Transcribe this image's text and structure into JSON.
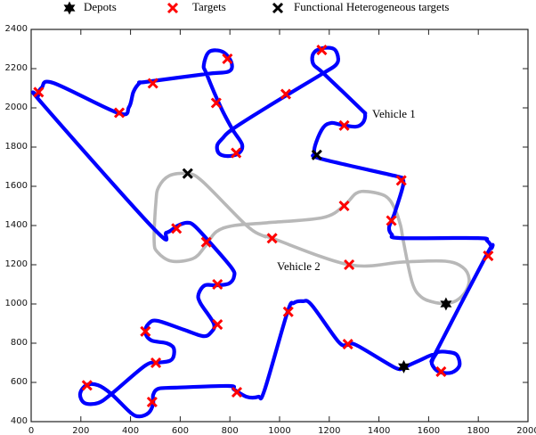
{
  "chart_data": {
    "type": "line",
    "title": "",
    "xlabel": "",
    "ylabel": "",
    "xlim": [
      0,
      2000
    ],
    "ylim": [
      400,
      2400
    ],
    "xticks": [
      0,
      200,
      400,
      600,
      800,
      1000,
      1200,
      1400,
      1600,
      1800,
      2000
    ],
    "yticks": [
      400,
      600,
      800,
      1000,
      1200,
      1400,
      1600,
      1800,
      2000,
      2200,
      2400
    ],
    "grid": false,
    "legend_position": "top",
    "legend": [
      {
        "label": "Depots",
        "marker": "star",
        "color": "#000000"
      },
      {
        "label": "Targets",
        "marker": "x",
        "color": "#ff0000"
      },
      {
        "label": "Functional Heterogeneous targets",
        "marker": "x",
        "color": "#000000"
      }
    ],
    "annotations": [
      {
        "text": "Vehicle 1",
        "x": 1370,
        "y": 1950
      },
      {
        "text": "Vehicle 2",
        "x": 990,
        "y": 1180
      }
    ],
    "depots": [
      [
        1500,
        680
      ],
      [
        1670,
        1000
      ]
    ],
    "targets": [
      [
        30,
        2080
      ],
      [
        355,
        1975
      ],
      [
        490,
        2125
      ],
      [
        790,
        2250
      ],
      [
        745,
        2025
      ],
      [
        825,
        1770
      ],
      [
        1025,
        2070
      ],
      [
        1170,
        2295
      ],
      [
        1260,
        1910
      ],
      [
        1450,
        1425
      ],
      [
        1490,
        1630
      ],
      [
        1260,
        1500
      ],
      [
        970,
        1335
      ],
      [
        1280,
        1200
      ],
      [
        1840,
        1245
      ],
      [
        1650,
        655
      ],
      [
        1275,
        795
      ],
      [
        1035,
        960
      ],
      [
        828,
        550
      ],
      [
        487,
        500
      ],
      [
        502,
        700
      ],
      [
        460,
        860
      ],
      [
        750,
        895
      ],
      [
        750,
        1100
      ],
      [
        705,
        1315
      ],
      [
        585,
        1385
      ],
      [
        225,
        585
      ]
    ],
    "functional_targets": [
      [
        630,
        1665
      ],
      [
        1150,
        1760
      ]
    ],
    "series": [
      {
        "name": "Vehicle 1",
        "color": "#0000ff",
        "points": [
          [
            1495,
            673
          ],
          [
            1560,
            710
          ],
          [
            1620,
            741
          ],
          [
            1613,
            695
          ],
          [
            1641,
            655
          ],
          [
            1692,
            650
          ],
          [
            1724,
            686
          ],
          [
            1713,
            741
          ],
          [
            1677,
            755
          ],
          [
            1638,
            755
          ],
          [
            1624,
            741
          ],
          [
            1835,
            1254
          ],
          [
            1853,
            1286
          ],
          [
            1835,
            1323
          ],
          [
            1799,
            1336
          ],
          [
            1487,
            1336
          ],
          [
            1452,
            1354
          ],
          [
            1441,
            1391
          ],
          [
            1462,
            1459
          ],
          [
            1498,
            1609
          ],
          [
            1487,
            1641
          ],
          [
            1462,
            1654
          ],
          [
            1165,
            1741
          ],
          [
            1140,
            1768
          ],
          [
            1147,
            1823
          ],
          [
            1176,
            1900
          ],
          [
            1208,
            1923
          ],
          [
            1247,
            1914
          ],
          [
            1308,
            1904
          ],
          [
            1337,
            1927
          ],
          [
            1344,
            1968
          ],
          [
            1326,
            1995
          ],
          [
            1176,
            2177
          ],
          [
            1136,
            2223
          ],
          [
            1136,
            2277
          ],
          [
            1172,
            2304
          ],
          [
            1219,
            2300
          ],
          [
            1236,
            2254
          ],
          [
            1226,
            2218
          ],
          [
            1176,
            2177
          ],
          [
            950,
            2004
          ],
          [
            810,
            1891
          ],
          [
            771,
            1845
          ],
          [
            749,
            1809
          ],
          [
            756,
            1768
          ],
          [
            792,
            1754
          ],
          [
            835,
            1768
          ],
          [
            849,
            1813
          ],
          [
            810,
            1891
          ],
          [
            763,
            2004
          ],
          [
            706,
            2173
          ],
          [
            695,
            2218
          ],
          [
            717,
            2286
          ],
          [
            771,
            2286
          ],
          [
            806,
            2232
          ],
          [
            796,
            2186
          ],
          [
            706,
            2173
          ],
          [
            459,
            2132
          ],
          [
            437,
            2127
          ],
          [
            412,
            2082
          ],
          [
            394,
            2004
          ],
          [
            351,
            1973
          ],
          [
            90,
            2127
          ],
          [
            43,
            2104
          ],
          [
            29,
            2064
          ],
          [
            47,
            2018
          ],
          [
            495,
            1382
          ],
          [
            545,
            1364
          ],
          [
            591,
            1400
          ],
          [
            627,
            1414
          ],
          [
            656,
            1400
          ],
          [
            713,
            1323
          ],
          [
            806,
            1186
          ],
          [
            817,
            1141
          ],
          [
            796,
            1104
          ],
          [
            745,
            1095
          ],
          [
            699,
            1095
          ],
          [
            674,
            1050
          ],
          [
            681,
            1005
          ],
          [
            735,
            900
          ],
          [
            724,
            855
          ],
          [
            692,
            836
          ],
          [
            616,
            868
          ],
          [
            509,
            914
          ],
          [
            473,
            900
          ],
          [
            459,
            855
          ],
          [
            484,
            814
          ],
          [
            545,
            800
          ],
          [
            573,
            777
          ],
          [
            573,
            732
          ],
          [
            556,
            709
          ],
          [
            509,
            700
          ],
          [
            459,
            686
          ],
          [
            323,
            541
          ],
          [
            269,
            495
          ],
          [
            215,
            495
          ],
          [
            197,
            541
          ],
          [
            222,
            586
          ],
          [
            269,
            586
          ],
          [
            323,
            541
          ],
          [
            401,
            445
          ],
          [
            437,
            427
          ],
          [
            473,
            445
          ],
          [
            491,
            491
          ],
          [
            491,
            536
          ],
          [
            513,
            568
          ],
          [
            581,
            573
          ],
          [
            796,
            582
          ],
          [
            817,
            564
          ],
          [
            867,
            527
          ],
          [
            914,
            527
          ],
          [
            939,
            559
          ],
          [
            1032,
            959
          ],
          [
            1057,
            1005
          ],
          [
            1093,
            1014
          ],
          [
            1129,
            995
          ],
          [
            1236,
            809
          ],
          [
            1272,
            791
          ],
          [
            1308,
            791
          ],
          [
            1462,
            677
          ],
          [
            1495,
            673
          ]
        ]
      },
      {
        "name": "Vehicle 2",
        "color": "#b8b8b8",
        "points": [
          [
            1670,
            1000
          ],
          [
            1713,
            1018
          ],
          [
            1749,
            1064
          ],
          [
            1763,
            1127
          ],
          [
            1738,
            1186
          ],
          [
            1667,
            1218
          ],
          [
            1498,
            1214
          ],
          [
            1280,
            1200
          ],
          [
            968,
            1336
          ],
          [
            939,
            1345
          ],
          [
            867,
            1400
          ],
          [
            688,
            1627
          ],
          [
            627,
            1664
          ],
          [
            556,
            1654
          ],
          [
            513,
            1595
          ],
          [
            502,
            1518
          ],
          [
            495,
            1323
          ],
          [
            509,
            1264
          ],
          [
            566,
            1218
          ],
          [
            652,
            1232
          ],
          [
            699,
            1291
          ],
          [
            745,
            1368
          ],
          [
            817,
            1400
          ],
          [
            950,
            1414
          ],
          [
            1176,
            1441
          ],
          [
            1262,
            1505
          ],
          [
            1308,
            1564
          ],
          [
            1355,
            1573
          ],
          [
            1426,
            1550
          ],
          [
            1462,
            1491
          ],
          [
            1487,
            1400
          ],
          [
            1498,
            1323
          ],
          [
            1534,
            1109
          ],
          [
            1570,
            1036
          ],
          [
            1620,
            1009
          ],
          [
            1670,
            1000
          ]
        ]
      }
    ]
  }
}
